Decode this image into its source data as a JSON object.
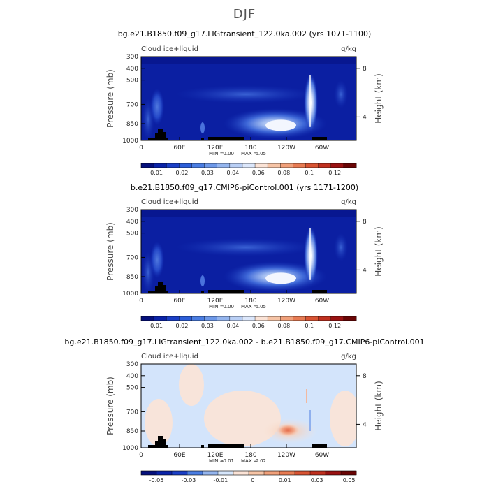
{
  "page": {
    "title": "DJF"
  },
  "panels_common": {
    "field_label": "Cloud ice+liquid",
    "units": "g/kg",
    "left_axis_label": "Pressure (mb)",
    "right_axis_label": "Height (km)",
    "x_ticks": [
      "0",
      "60E",
      "120E",
      "180",
      "120W",
      "60W"
    ],
    "y_ticks": [
      "300",
      "400",
      "500",
      "700",
      "850",
      "1000"
    ],
    "height_ticks": [
      "8",
      "4"
    ]
  },
  "panels": [
    {
      "title": "bg.e21.B1850.f09_g17.LIGtransient_122.0ka.002 (yrs 1071-1100)",
      "stats": {
        "min_label": "MIN =",
        "min": "0.00",
        "max_label": "MAX =",
        "max": "0.05"
      },
      "colorbar": {
        "labels": [
          "0.01",
          "0.02",
          "0.03",
          "0.04",
          "0.06",
          "0.08",
          "0.1",
          "0.12"
        ],
        "colors": [
          "#05107c",
          "#0a23a8",
          "#1b3fc6",
          "#2c5ed8",
          "#4a7de2",
          "#6d98e8",
          "#94b5ee",
          "#b9cff5",
          "#dce7fb",
          "#fbe3d6",
          "#f6c4a6",
          "#f0a07a",
          "#e77b53",
          "#d85433",
          "#c0301f",
          "#9a1212",
          "#6a0505"
        ]
      }
    },
    {
      "title": "b.e21.B1850.f09_g17.CMIP6-piControl.001 (yrs 1171-1200)",
      "stats": {
        "min_label": "MIN =",
        "min": "0.00",
        "max_label": "MAX =",
        "max": "0.05"
      },
      "colorbar": {
        "labels": [
          "0.01",
          "0.02",
          "0.03",
          "0.04",
          "0.06",
          "0.08",
          "0.1",
          "0.12"
        ],
        "colors": [
          "#05107c",
          "#0a23a8",
          "#1b3fc6",
          "#2c5ed8",
          "#4a7de2",
          "#6d98e8",
          "#94b5ee",
          "#b9cff5",
          "#dce7fb",
          "#fbe3d6",
          "#f6c4a6",
          "#f0a07a",
          "#e77b53",
          "#d85433",
          "#c0301f",
          "#9a1212",
          "#6a0505"
        ]
      }
    },
    {
      "title": "bg.e21.B1850.f09_g17.LIGtransient_122.0ka.002 - b.e21.B1850.f09_g17.CMIP6-piControl.001",
      "stats": {
        "min_label": "MIN =",
        "min": "-0.01",
        "max_label": "MAX =",
        "max": "0.02"
      },
      "colorbar": {
        "labels": [
          "-0.05",
          "-0.03",
          "-0.01",
          "0",
          "0.01",
          "0.03",
          "0.05"
        ],
        "colors": [
          "#05107c",
          "#0a23a8",
          "#1b3fc6",
          "#4a7de2",
          "#94b5ee",
          "#d6e6fb",
          "#fbe3d6",
          "#f6c4a6",
          "#f0a07a",
          "#e77b53",
          "#d85433",
          "#c0301f",
          "#9a1212",
          "#6a0505"
        ]
      }
    }
  ],
  "chart_data": {
    "type": "heatmap",
    "x_axis": "longitude (0-360)",
    "y_axis": "pressure (mb)",
    "ylim": [
      1000,
      300
    ],
    "xlim": [
      0,
      360
    ],
    "grid": false,
    "panels": [
      {
        "field": "Cloud ice+liquid",
        "min": 0.0,
        "max": 0.05,
        "background_value": 0.01,
        "features": [
          {
            "lon": 190,
            "p": 850,
            "value": 0.05
          },
          {
            "lon": 287,
            "p": 730,
            "value": 0.05
          },
          {
            "lon": 22,
            "p": 650,
            "value": 0.03
          },
          {
            "lon": 140,
            "p": 500,
            "value": 0.02
          }
        ]
      },
      {
        "field": "Cloud ice+liquid",
        "min": 0.0,
        "max": 0.05,
        "background_value": 0.01,
        "features": [
          {
            "lon": 200,
            "p": 850,
            "value": 0.05
          },
          {
            "lon": 287,
            "p": 730,
            "value": 0.05
          },
          {
            "lon": 22,
            "p": 660,
            "value": 0.03
          }
        ]
      },
      {
        "field": "difference",
        "min": -0.01,
        "max": 0.02,
        "background_value": 0.0,
        "features": [
          {
            "lon": 180,
            "p": 840,
            "value": 0.02
          },
          {
            "lon": 285,
            "p": 800,
            "value": -0.01
          }
        ]
      }
    ]
  }
}
